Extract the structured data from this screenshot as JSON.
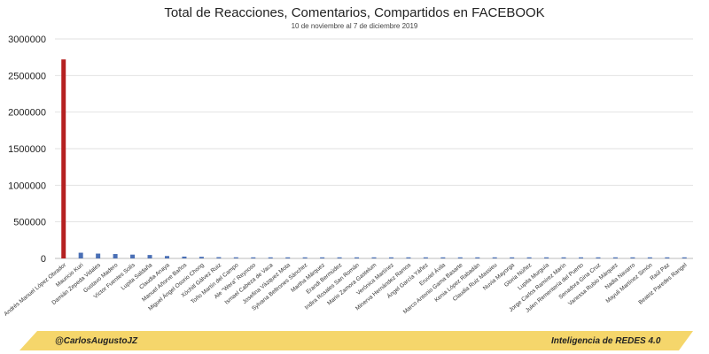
{
  "chart_data": {
    "type": "bar",
    "title": "Total de Reacciones, Comentarios, Compartidos en FACEBOOK",
    "subtitle": "10 de noviembre al 7 de diciembre 2019",
    "xlabel": "",
    "ylabel": "",
    "ylim": [
      0,
      3000000
    ],
    "yticks": [
      "0",
      "500000",
      "1000000",
      "1500000",
      "2000000",
      "2500000",
      "3000000"
    ],
    "grid": true,
    "highlight_color": "#b52121",
    "bar_color": "#4a6fb5",
    "categories": [
      "Andrés Manuel López Obrador",
      "Mauricio Kuri",
      "Damián Zepeda Vidales",
      "Gustavo Madero",
      "Víctor Fuentes Solís",
      "Lupita Saldaña",
      "Claudia Anaya",
      "Manuel Añorve Baños",
      "Miguel Ángel Osorio Chong",
      "Xóchitl Gálvez Ruiz",
      "Toño Martín del Campo",
      "Ale \"Wera\" Reynoso",
      "Ismael Cabeza de Vaca",
      "Josefina Vázquez Mota",
      "Sylvana Beltrones Sánchez",
      "Martha Márquez",
      "Erandi Bermúdez",
      "Indira Rosales San Román",
      "Mario Zamora Gastelum",
      "Verónica Martínez",
      "Minerva Hernández Ramos",
      "Ángel García Yáñez",
      "Eruviel Ávila",
      "Marco Antonio Gama Basarte",
      "Kenia López Rabadán",
      "Claudia Ruiz Massieu",
      "Nuvia Mayorga",
      "Gloria Núñez",
      "Lupita Murguía",
      "Jorge Carlos Ramírez Marín",
      "Julen Rementería del Puerto",
      "Senadora Gina Cruz",
      "Vanessa Rubio Márquez",
      "Nadia Navarro",
      "Mayuli Martínez Simón",
      "Raúl Paz",
      "Beatriz Paredes Rangel"
    ],
    "values": [
      2720000,
      78000,
      66000,
      60000,
      52000,
      47000,
      33000,
      25000,
      22000,
      17000,
      15000,
      13000,
      11000,
      9000,
      8000,
      7500,
      7000,
      6500,
      6000,
      5500,
      5000,
      4700,
      4400,
      4100,
      3800,
      3500,
      3300,
      3100,
      2900,
      2700,
      2500,
      2300,
      2100,
      1900,
      1700,
      1500,
      1300
    ]
  },
  "footer": {
    "left": "@CarlosAugustoJZ",
    "right": "Inteligencia de REDES 4.0",
    "band_color": "#f5d66b"
  }
}
